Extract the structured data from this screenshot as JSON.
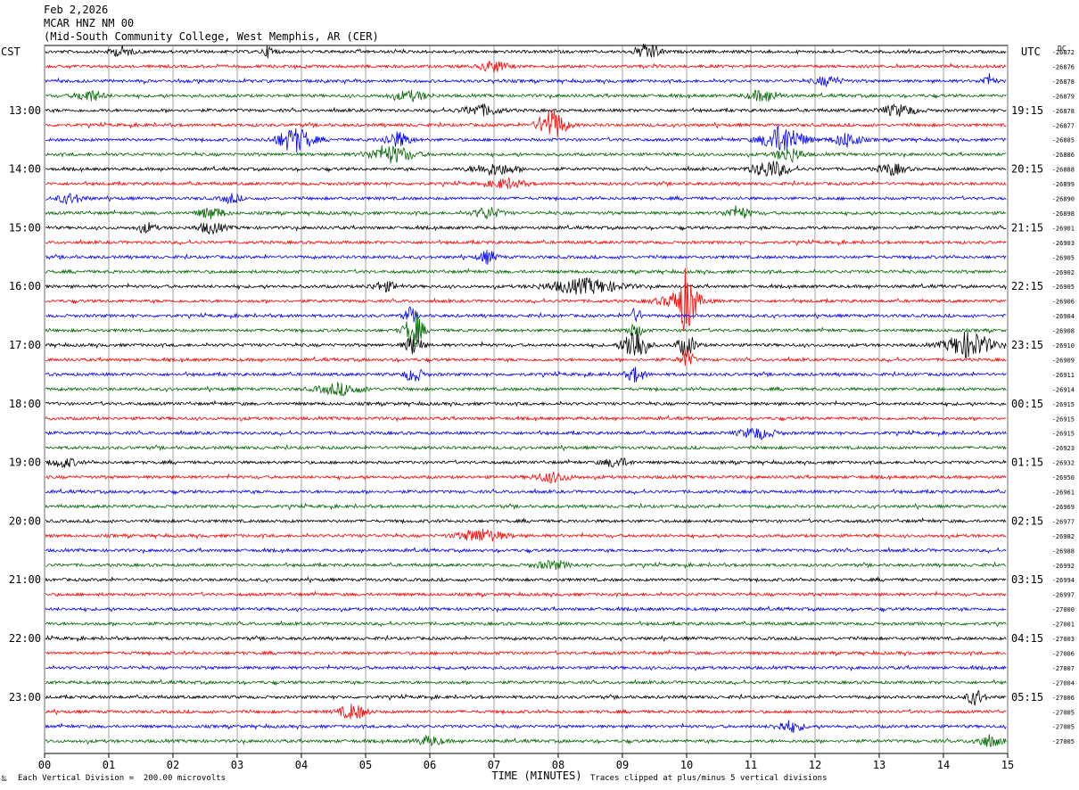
{
  "header": {
    "date": "Feb 2,2026",
    "station": "MCAR HNZ NM 00",
    "location": "(Mid-South Community College, West Memphis, AR (CER)"
  },
  "left_zone": "CST",
  "right_zone": "UTC",
  "dc_label": "DC",
  "footer": {
    "scale_note": "Each Vertical Division =  200.00 microvolts",
    "clip_note": "Traces clipped at plus/minus 5 vertical divisions",
    "mark": "‰"
  },
  "chart_data": {
    "type": "line",
    "title": "",
    "xlabel": "TIME (MINUTES)",
    "ylabel": "",
    "xlim": [
      0,
      15
    ],
    "x_ticks": [
      "00",
      "01",
      "02",
      "03",
      "04",
      "05",
      "06",
      "07",
      "08",
      "09",
      "10",
      "11",
      "12",
      "13",
      "14",
      "15"
    ],
    "grid": true,
    "trace_minutes": 15,
    "trace_colors": [
      "#000000",
      "#ff0000",
      "#0000ff",
      "#006600"
    ],
    "left_hour_labels": [
      "13:00",
      "14:00",
      "15:00",
      "16:00",
      "17:00",
      "18:00",
      "19:00",
      "20:00",
      "21:00",
      "22:00",
      "23:00"
    ],
    "right_hour_labels": [
      "19:15",
      "20:15",
      "21:15",
      "22:15",
      "23:15",
      "00:15",
      "01:15",
      "02:15",
      "03:15",
      "04:15",
      "05:15"
    ],
    "dc_offsets": [
      -26872,
      -26876,
      -26878,
      -26879,
      -26878,
      -26877,
      -26885,
      -26886,
      -26888,
      -26899,
      -26890,
      -26898,
      -26901,
      -26903,
      -26905,
      -26902,
      -26905,
      -26906,
      -26904,
      -26908,
      -26910,
      -26909,
      -26911,
      -26914,
      -26915,
      -26915,
      -26915,
      -26923,
      -26932,
      -26950,
      -26961,
      -26969,
      -26977,
      -26982,
      -26988,
      -26992,
      -26994,
      -26997,
      -27000,
      -27001,
      -27003,
      -27006,
      -27007,
      -27004,
      -27006,
      -27005,
      -27005,
      -27005
    ],
    "events": [
      {
        "trace": 0,
        "minute": 9.4,
        "amp": 9,
        "dur": 0.25
      },
      {
        "trace": 0,
        "minute": 1.2,
        "amp": 5,
        "dur": 0.25
      },
      {
        "trace": 0,
        "minute": 3.5,
        "amp": 6,
        "dur": 0.15
      },
      {
        "trace": 1,
        "minute": 7.0,
        "amp": 6,
        "dur": 0.3
      },
      {
        "trace": 2,
        "minute": 12.2,
        "amp": 5,
        "dur": 0.3
      },
      {
        "trace": 2,
        "minute": 14.7,
        "amp": 6,
        "dur": 0.15
      },
      {
        "trace": 3,
        "minute": 0.7,
        "amp": 6,
        "dur": 0.3
      },
      {
        "trace": 3,
        "minute": 5.7,
        "amp": 5,
        "dur": 0.4
      },
      {
        "trace": 3,
        "minute": 11.2,
        "amp": 6,
        "dur": 0.35
      },
      {
        "trace": 4,
        "minute": 6.8,
        "amp": 6,
        "dur": 0.4
      },
      {
        "trace": 4,
        "minute": 13.3,
        "amp": 6,
        "dur": 0.4
      },
      {
        "trace": 5,
        "minute": 7.9,
        "amp": 17,
        "dur": 0.3
      },
      {
        "trace": 6,
        "minute": 3.9,
        "amp": 13,
        "dur": 0.4
      },
      {
        "trace": 6,
        "minute": 11.5,
        "amp": 15,
        "dur": 0.45
      },
      {
        "trace": 6,
        "minute": 5.5,
        "amp": 8,
        "dur": 0.3
      },
      {
        "trace": 6,
        "minute": 12.5,
        "amp": 8,
        "dur": 0.3
      },
      {
        "trace": 7,
        "minute": 5.4,
        "amp": 9,
        "dur": 0.5
      },
      {
        "trace": 7,
        "minute": 11.6,
        "amp": 8,
        "dur": 0.3
      },
      {
        "trace": 8,
        "minute": 11.3,
        "amp": 9,
        "dur": 0.4
      },
      {
        "trace": 8,
        "minute": 7.0,
        "amp": 6,
        "dur": 0.5
      },
      {
        "trace": 8,
        "minute": 13.2,
        "amp": 6,
        "dur": 0.3
      },
      {
        "trace": 9,
        "minute": 7.2,
        "amp": 5,
        "dur": 0.4
      },
      {
        "trace": 10,
        "minute": 0.4,
        "amp": 5,
        "dur": 0.3
      },
      {
        "trace": 10,
        "minute": 2.9,
        "amp": 5,
        "dur": 0.2
      },
      {
        "trace": 11,
        "minute": 2.6,
        "amp": 6,
        "dur": 0.3
      },
      {
        "trace": 11,
        "minute": 6.9,
        "amp": 6,
        "dur": 0.3
      },
      {
        "trace": 11,
        "minute": 10.8,
        "amp": 6,
        "dur": 0.3
      },
      {
        "trace": 12,
        "minute": 2.6,
        "amp": 6,
        "dur": 0.3
      },
      {
        "trace": 12,
        "minute": 1.6,
        "amp": 5,
        "dur": 0.2
      },
      {
        "trace": 14,
        "minute": 6.9,
        "amp": 7,
        "dur": 0.2
      },
      {
        "trace": 16,
        "minute": 8.4,
        "amp": 8,
        "dur": 0.8
      },
      {
        "trace": 16,
        "minute": 5.3,
        "amp": 5,
        "dur": 0.3
      },
      {
        "trace": 17,
        "minute": 10.0,
        "amp": 30,
        "dur": 0.2
      },
      {
        "trace": 17,
        "minute": 9.9,
        "amp": 7,
        "dur": 0.5
      },
      {
        "trace": 18,
        "minute": 5.7,
        "amp": 8,
        "dur": 0.15
      },
      {
        "trace": 18,
        "minute": 9.2,
        "amp": 7,
        "dur": 0.15
      },
      {
        "trace": 19,
        "minute": 5.75,
        "amp": 20,
        "dur": 0.2
      },
      {
        "trace": 19,
        "minute": 9.2,
        "amp": 6,
        "dur": 0.2
      },
      {
        "trace": 20,
        "minute": 9.2,
        "amp": 22,
        "dur": 0.25
      },
      {
        "trace": 20,
        "minute": 14.4,
        "amp": 14,
        "dur": 0.5
      },
      {
        "trace": 20,
        "minute": 10.0,
        "amp": 12,
        "dur": 0.2
      },
      {
        "trace": 20,
        "minute": 5.75,
        "amp": 10,
        "dur": 0.2
      },
      {
        "trace": 21,
        "minute": 10.0,
        "amp": 10,
        "dur": 0.15
      },
      {
        "trace": 22,
        "minute": 9.2,
        "amp": 8,
        "dur": 0.2
      },
      {
        "trace": 22,
        "minute": 5.75,
        "amp": 8,
        "dur": 0.2
      },
      {
        "trace": 23,
        "minute": 4.6,
        "amp": 6,
        "dur": 0.5
      },
      {
        "trace": 26,
        "minute": 11.1,
        "amp": 6,
        "dur": 0.4
      },
      {
        "trace": 28,
        "minute": 0.3,
        "amp": 5,
        "dur": 0.3
      },
      {
        "trace": 28,
        "minute": 8.9,
        "amp": 5,
        "dur": 0.3
      },
      {
        "trace": 29,
        "minute": 7.9,
        "amp": 5,
        "dur": 0.4
      },
      {
        "trace": 33,
        "minute": 6.8,
        "amp": 7,
        "dur": 0.5
      },
      {
        "trace": 35,
        "minute": 7.9,
        "amp": 4,
        "dur": 0.4
      },
      {
        "trace": 44,
        "minute": 14.5,
        "amp": 8,
        "dur": 0.2
      },
      {
        "trace": 45,
        "minute": 4.8,
        "amp": 8,
        "dur": 0.3
      },
      {
        "trace": 46,
        "minute": 11.6,
        "amp": 6,
        "dur": 0.3
      },
      {
        "trace": 47,
        "minute": 14.7,
        "amp": 6,
        "dur": 0.3
      },
      {
        "trace": 47,
        "minute": 6.0,
        "amp": 5,
        "dur": 0.3
      }
    ]
  }
}
